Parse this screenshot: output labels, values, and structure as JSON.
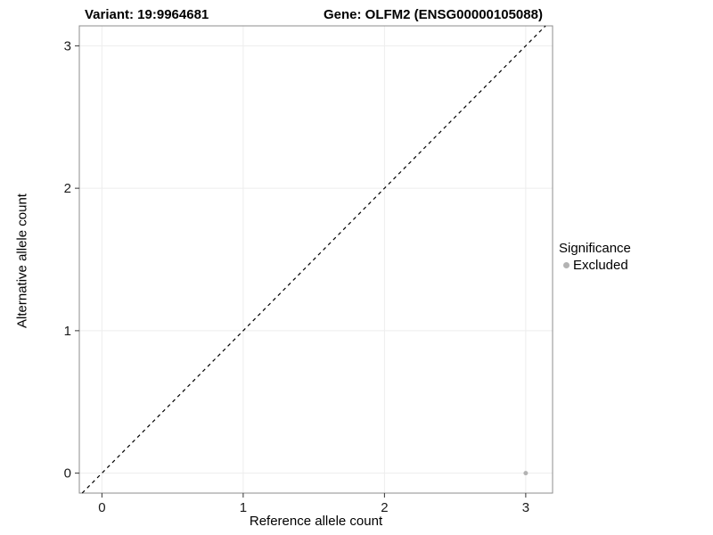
{
  "chart_data": {
    "type": "scatter",
    "title_left": "Variant: 19:9964681",
    "title_right": "Gene: OLFM2 (ENSG00000105088)",
    "xlabel": "Reference allele count",
    "ylabel": "Alternative allele count",
    "xlim": [
      -0.16,
      3.19
    ],
    "ylim": [
      -0.14,
      3.14
    ],
    "xticks": [
      0,
      1,
      2,
      3
    ],
    "yticks": [
      0,
      1,
      2,
      3
    ],
    "grid": true,
    "diagonal_line": {
      "type": "identity",
      "style": "dashed",
      "color": "#000000"
    },
    "series": [
      {
        "name": "Excluded",
        "color": "#b3b3b3",
        "points": [
          {
            "x": 3,
            "y": 0
          }
        ]
      }
    ],
    "legend": {
      "title": "Significance",
      "position": "right",
      "entries": [
        {
          "label": "Excluded",
          "color": "#b3b3b3"
        }
      ]
    },
    "colors": {
      "grid": "#ededed",
      "panel_border": "#8c8c8c",
      "tick": "#333333",
      "text": "#000000",
      "background": "#ffffff"
    }
  }
}
